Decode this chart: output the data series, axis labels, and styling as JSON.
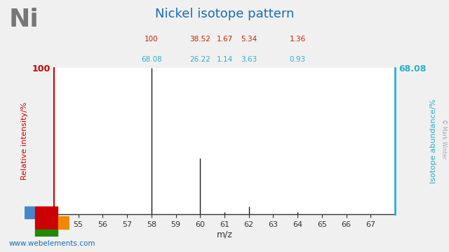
{
  "title": "Nickel isotope pattern",
  "element_symbol": "Ni",
  "xlabel": "m/z",
  "ylabel_left": "Relative intensity/%",
  "ylabel_right": "Isotope abundance/%",
  "xlim": [
    54.0,
    68.0
  ],
  "ylim": [
    0,
    105
  ],
  "plot_ylim": [
    0,
    100
  ],
  "xticks": [
    55,
    56,
    57,
    58,
    59,
    60,
    61,
    62,
    63,
    64,
    65,
    66,
    67
  ],
  "isotopes": [
    {
      "mz": 58,
      "relative_intensity": 100.0,
      "abundance": 68.08,
      "rel_label": "100",
      "abu_label": "68.08"
    },
    {
      "mz": 60,
      "relative_intensity": 38.52,
      "abundance": 26.22,
      "rel_label": "38.52",
      "abu_label": "26.22"
    },
    {
      "mz": 61,
      "relative_intensity": 1.67,
      "abundance": 1.14,
      "rel_label": "1.67",
      "abu_label": "1.14"
    },
    {
      "mz": 62,
      "relative_intensity": 5.34,
      "abundance": 3.63,
      "rel_label": "5.34",
      "abu_label": "3.63"
    },
    {
      "mz": 64,
      "relative_intensity": 1.36,
      "abundance": 0.93,
      "rel_label": "1.36",
      "abu_label": "0.93"
    }
  ],
  "line_color": "#1a1a1a",
  "title_color": "#1a6cb5",
  "left_axis_color": "#cc0000",
  "right_axis_color": "#2ab0d0",
  "rel_label_color": "#cc2200",
  "abu_label_color": "#2ab0d0",
  "element_color": "#777777",
  "url_color": "#1a6cb5",
  "background_color": "#f0f0f0",
  "plot_bg_color": "#ffffff",
  "watermark": "© Mark Winter",
  "url": "www.webelements.com",
  "left_top_label": "100",
  "right_top_label": "68.08",
  "periodic_colors": [
    "#4488cc",
    "#cc0000",
    "#ee8800",
    "#228800"
  ]
}
